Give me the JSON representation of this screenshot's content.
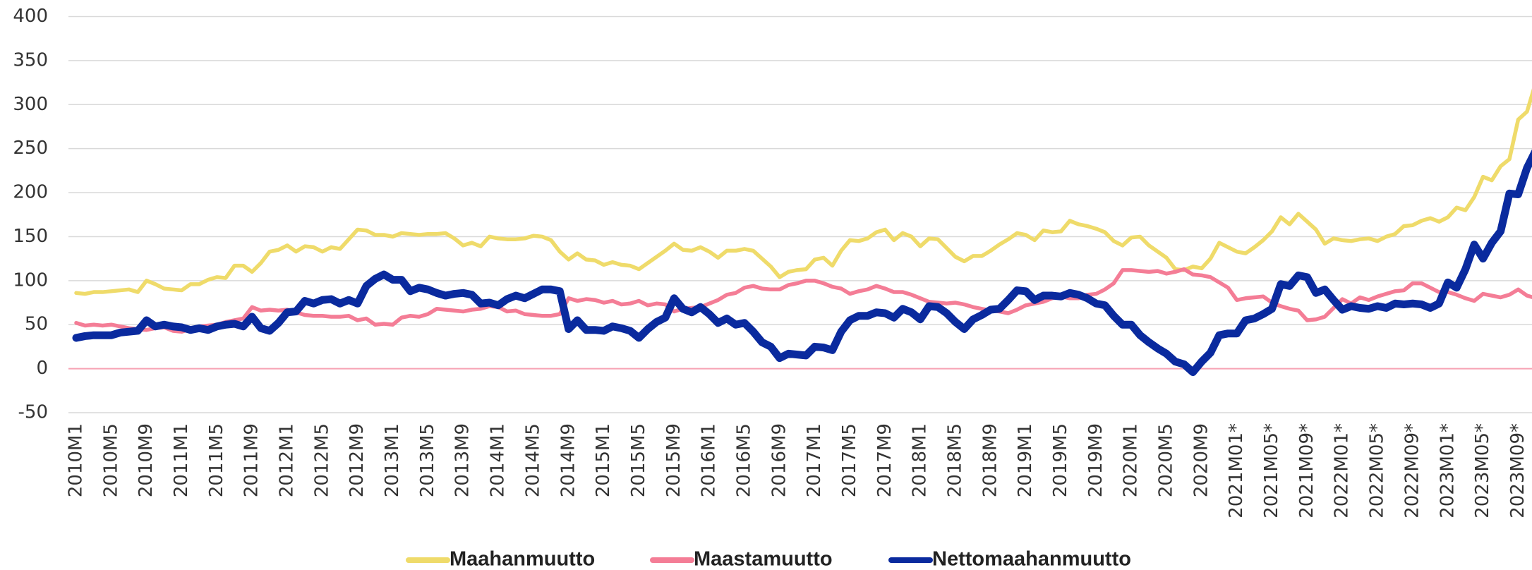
{
  "chart_data": {
    "type": "line",
    "categories": [
      "2010M1",
      null,
      null,
      null,
      "2010M5",
      null,
      null,
      null,
      "2010M9",
      null,
      null,
      null,
      "2011M1",
      null,
      null,
      null,
      "2011M5",
      null,
      null,
      null,
      "2011M9",
      null,
      null,
      null,
      "2012M1",
      null,
      null,
      null,
      "2012M5",
      null,
      null,
      null,
      "2012M9",
      null,
      null,
      null,
      "2013M1",
      null,
      null,
      null,
      "2013M5",
      null,
      null,
      null,
      "2013M9",
      null,
      null,
      null,
      "2014M1",
      null,
      null,
      null,
      "2014M5",
      null,
      null,
      null,
      "2014M9",
      null,
      null,
      null,
      "2015M1",
      null,
      null,
      null,
      "2015M5",
      null,
      null,
      null,
      "2015M9",
      null,
      null,
      null,
      "2016M1",
      null,
      null,
      null,
      "2016M5",
      null,
      null,
      null,
      "2016M9",
      null,
      null,
      null,
      "2017M1",
      null,
      null,
      null,
      "2017M5",
      null,
      null,
      null,
      "2017M9",
      null,
      null,
      null,
      "2018M1",
      null,
      null,
      null,
      "2018M5",
      null,
      null,
      null,
      "2018M9",
      null,
      null,
      null,
      "2019M1",
      null,
      null,
      null,
      "2019M5",
      null,
      null,
      null,
      "2019M9",
      null,
      null,
      null,
      "2020M1",
      null,
      null,
      null,
      "2020M5",
      null,
      null,
      null,
      "2020M9",
      null,
      null,
      null,
      "2021M01*",
      null,
      null,
      null,
      "2021M05*",
      null,
      null,
      null,
      "2021M09*",
      null,
      null,
      null,
      "2022M01*",
      null,
      null,
      null,
      "2022M05*",
      null,
      null,
      null,
      "2022M09*",
      null,
      null,
      null,
      "2023M01*",
      null,
      null,
      null,
      "2023M05*",
      null,
      null,
      null,
      "2023M09*",
      null,
      null
    ],
    "series": [
      {
        "name": "Maahanmuutto",
        "color": "#efdb6a",
        "values": [
          86,
          85,
          87,
          87,
          88,
          89,
          90,
          87,
          100,
          96,
          91,
          90,
          89,
          96,
          96,
          101,
          104,
          103,
          117,
          117,
          110,
          120,
          133,
          135,
          140,
          133,
          139,
          138,
          133,
          138,
          136,
          147,
          158,
          157,
          152,
          152,
          150,
          154,
          153,
          152,
          153,
          153,
          154,
          148,
          140,
          143,
          139,
          150,
          148,
          147,
          147,
          148,
          151,
          150,
          146,
          133,
          124,
          131,
          124,
          123,
          118,
          121,
          118,
          117,
          113,
          120,
          127,
          134,
          142,
          135,
          134,
          138,
          133,
          126,
          134,
          134,
          136,
          134,
          125,
          116,
          104,
          110,
          112,
          113,
          124,
          126,
          117,
          134,
          146,
          145,
          148,
          155,
          158,
          146,
          154,
          150,
          139,
          148,
          147,
          137,
          127,
          122,
          128,
          128,
          134,
          141,
          147,
          154,
          152,
          146,
          157,
          155,
          156,
          168,
          164,
          162,
          159,
          155,
          145,
          140,
          149,
          150,
          140,
          133,
          126,
          113,
          112,
          116,
          114,
          125,
          143,
          138,
          133,
          131,
          138,
          146,
          156,
          172,
          164,
          176,
          167,
          158,
          142,
          148,
          146,
          145,
          147,
          148,
          145,
          150,
          153,
          162,
          163,
          168,
          171,
          167,
          172,
          183,
          180,
          195,
          218,
          214,
          230,
          238,
          283,
          292,
          325
        ]
      },
      {
        "name": "Maastamuutto",
        "color": "#f47d96",
        "values": [
          52,
          49,
          50,
          49,
          50,
          48,
          46,
          45,
          44,
          46,
          47,
          43,
          42,
          45,
          48,
          49,
          50,
          53,
          55,
          57,
          70,
          66,
          67,
          66,
          67,
          64,
          61,
          60,
          60,
          59,
          59,
          60,
          55,
          57,
          50,
          51,
          50,
          58,
          60,
          59,
          62,
          68,
          67,
          66,
          65,
          67,
          68,
          71,
          70,
          65,
          66,
          62,
          61,
          60,
          60,
          62,
          80,
          77,
          79,
          78,
          75,
          77,
          73,
          74,
          77,
          72,
          74,
          73,
          65,
          68,
          69,
          70,
          74,
          78,
          84,
          86,
          92,
          94,
          91,
          90,
          90,
          95,
          97,
          100,
          100,
          97,
          93,
          91,
          85,
          88,
          90,
          94,
          91,
          87,
          87,
          84,
          80,
          76,
          75,
          74,
          75,
          73,
          70,
          68,
          66,
          65,
          63,
          67,
          72,
          74,
          76,
          80,
          82,
          80,
          80,
          84,
          85,
          90,
          97,
          112,
          112,
          111,
          110,
          111,
          108,
          110,
          113,
          107,
          106,
          104,
          98,
          92,
          78,
          80,
          81,
          82,
          75,
          71,
          68,
          66,
          55,
          56,
          59,
          69,
          79,
          74,
          81,
          78,
          82,
          85,
          88,
          89,
          97,
          97,
          92,
          87,
          87,
          84,
          80,
          77,
          85,
          83,
          81,
          84,
          90,
          83,
          80
        ]
      },
      {
        "name": "Nettomaahanmuutto",
        "color": "#0a2a9e",
        "values": [
          35,
          37,
          38,
          38,
          38,
          41,
          42,
          43,
          55,
          48,
          50,
          48,
          47,
          44,
          46,
          44,
          48,
          50,
          51,
          48,
          59,
          46,
          43,
          52,
          64,
          65,
          77,
          74,
          78,
          79,
          74,
          78,
          74,
          94,
          102,
          107,
          101,
          101,
          88,
          92,
          90,
          86,
          83,
          85,
          86,
          84,
          74,
          75,
          72,
          79,
          83,
          80,
          85,
          90,
          90,
          88,
          45,
          55,
          44,
          44,
          43,
          48,
          46,
          43,
          35,
          45,
          53,
          58,
          80,
          68,
          64,
          70,
          62,
          52,
          57,
          50,
          52,
          42,
          30,
          25,
          12,
          17,
          16,
          15,
          25,
          24,
          21,
          42,
          55,
          60,
          60,
          64,
          63,
          58,
          68,
          64,
          56,
          71,
          70,
          63,
          53,
          45,
          56,
          61,
          67,
          68,
          78,
          89,
          88,
          78,
          83,
          83,
          82,
          86,
          84,
          80,
          74,
          72,
          60,
          50,
          50,
          38,
          30,
          23,
          17,
          8,
          5,
          -4,
          8,
          18,
          38,
          40,
          40,
          55,
          57,
          62,
          68,
          96,
          94,
          106,
          104,
          86,
          90,
          78,
          67,
          71,
          69,
          68,
          71,
          69,
          74,
          73,
          74,
          73,
          69,
          74,
          98,
          92,
          113,
          141,
          125,
          143,
          156,
          199,
          198,
          228,
          248
        ]
      }
    ],
    "ylim": [
      -50,
      400
    ],
    "yticks": [
      -50,
      0,
      50,
      100,
      150,
      200,
      250,
      300,
      350,
      400
    ],
    "grid": true,
    "legend": "bottom"
  }
}
